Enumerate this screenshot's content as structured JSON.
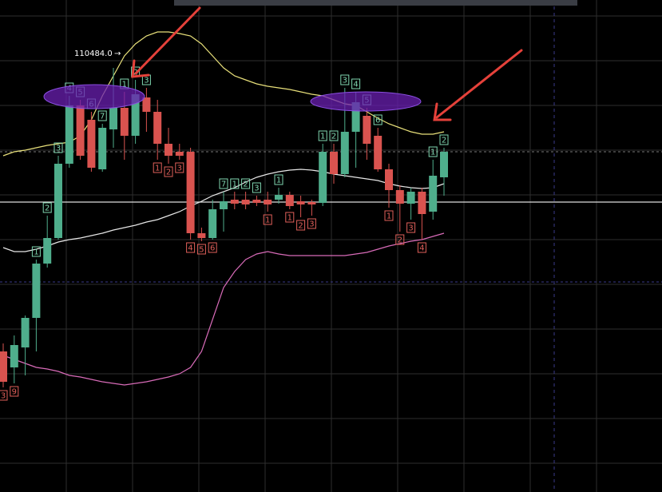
{
  "chart_data": {
    "type": "candlestick",
    "ylim": [
      104994,
      111154
    ],
    "up_color": "#4fae8c",
    "down_color": "#d9534f",
    "price_label": {
      "value": 110484,
      "label": "110484.0"
    },
    "open": [
      106754,
      106554,
      106804,
      107174,
      107854,
      108174,
      109104,
      109834,
      109654,
      109034,
      109534,
      109804,
      109454,
      109934,
      109754,
      109354,
      109254,
      109254,
      108234,
      108174,
      108534,
      108654,
      108654,
      108654,
      108654,
      108654,
      108714,
      108634,
      108624,
      108614,
      109254,
      108974,
      109504,
      109704,
      109454,
      109034,
      108774,
      108604,
      108754,
      108504,
      108934
    ],
    "high": [
      106854,
      106954,
      107204,
      107904,
      108454,
      109204,
      109954,
      109904,
      109754,
      109604,
      110304,
      110004,
      110154,
      110054,
      109904,
      109554,
      109354,
      109304,
      108304,
      108654,
      108754,
      108754,
      108754,
      108704,
      108754,
      108804,
      108754,
      108704,
      108654,
      109354,
      109354,
      110054,
      110004,
      109804,
      109554,
      109104,
      108834,
      108804,
      108804,
      109154,
      109304
    ],
    "low": [
      106304,
      106354,
      106454,
      106754,
      107804,
      108154,
      109054,
      109154,
      109004,
      109004,
      109304,
      109154,
      109354,
      109504,
      109154,
      109104,
      109154,
      108154,
      108134,
      108154,
      108254,
      108534,
      108534,
      108574,
      108504,
      108604,
      108534,
      108434,
      108454,
      108574,
      108854,
      108934,
      109054,
      109154,
      109004,
      108554,
      108254,
      108404,
      108154,
      108404,
      108704
    ],
    "close": [
      106374,
      106834,
      107174,
      107854,
      108174,
      109104,
      109834,
      109204,
      109054,
      109554,
      109804,
      109454,
      109974,
      109754,
      109354,
      109204,
      109204,
      108234,
      108174,
      108534,
      108634,
      108604,
      108594,
      108614,
      108594,
      108714,
      108574,
      108594,
      108594,
      109254,
      108974,
      109504,
      109874,
      109354,
      109034,
      108774,
      108604,
      108754,
      108474,
      108954,
      109254
    ],
    "buy_counts": [
      null,
      null,
      null,
      "1",
      "2",
      "3",
      "4",
      "5",
      "6",
      "7",
      null,
      "1",
      "2",
      "3",
      null,
      null,
      null,
      null,
      null,
      null,
      "7",
      "1",
      "2",
      "3",
      null,
      "1",
      null,
      null,
      null,
      "1",
      "2",
      "3",
      "4",
      "5",
      "6",
      null,
      null,
      null,
      null,
      "1",
      "2"
    ],
    "sell_counts": [
      "3",
      "9",
      null,
      null,
      null,
      null,
      null,
      null,
      null,
      null,
      null,
      null,
      null,
      null,
      "1",
      "2",
      "3",
      "4",
      "5",
      "6",
      null,
      null,
      null,
      null,
      "1",
      null,
      "1",
      "2",
      "3",
      null,
      null,
      null,
      null,
      null,
      null,
      "1",
      "2",
      "3",
      "4",
      null,
      null
    ],
    "series": [
      {
        "color": "#e8e07a",
        "values": [
          109204,
          109254,
          109274,
          109304,
          109334,
          109354,
          109374,
          109454,
          109654,
          109954,
          110204,
          110454,
          110604,
          110704,
          110754,
          110754,
          110734,
          110704,
          110604,
          110454,
          110304,
          110204,
          110154,
          110104,
          110074,
          110054,
          110034,
          110004,
          109974,
          109954,
          109904,
          109854,
          109834,
          109754,
          109674,
          109604,
          109554,
          109504,
          109474,
          109474,
          109504
        ]
      },
      {
        "color": "#e6e6e6",
        "values": [
          108054,
          108004,
          108004,
          108034,
          108074,
          108124,
          108154,
          108174,
          108204,
          108234,
          108274,
          108304,
          108334,
          108374,
          108404,
          108454,
          108504,
          108574,
          108634,
          108704,
          108754,
          108804,
          108874,
          108934,
          108974,
          109004,
          109024,
          109034,
          109024,
          109004,
          108974,
          108954,
          108934,
          108914,
          108894,
          108854,
          108824,
          108804,
          108794,
          108804,
          108854
        ]
      },
      {
        "color": "#d86bb8",
        "values": [
          106704,
          106654,
          106604,
          106554,
          106534,
          106504,
          106454,
          106434,
          106404,
          106374,
          106354,
          106334,
          106354,
          106374,
          106404,
          106434,
          106474,
          106554,
          106754,
          107154,
          107554,
          107754,
          107904,
          107974,
          108004,
          107974,
          107954,
          107954,
          107954,
          107954,
          107954,
          107954,
          107974,
          107994,
          108034,
          108074,
          108104,
          108134,
          108154,
          108194,
          108234
        ]
      }
    ]
  }
}
